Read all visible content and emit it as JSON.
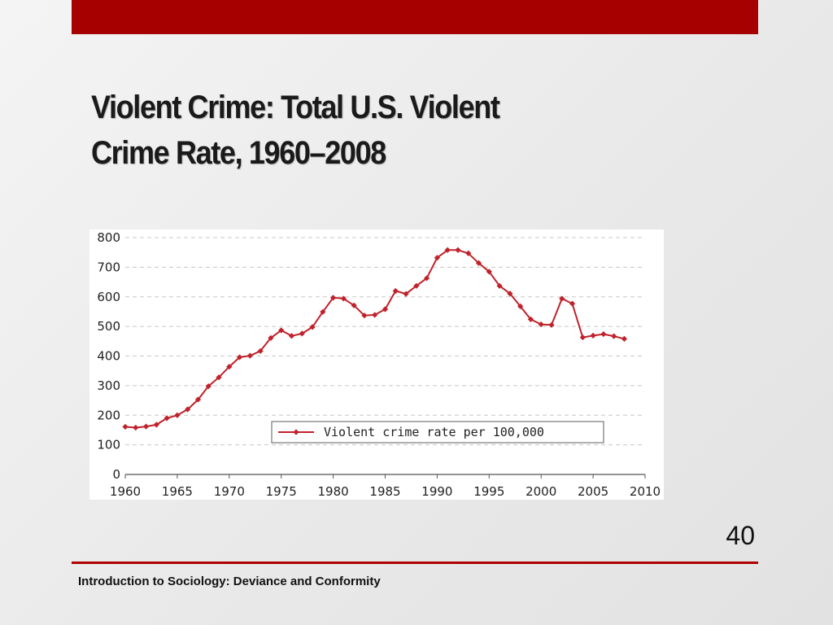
{
  "slide": {
    "title_part1": "Violent Crime: ",
    "title_part2": "Total U.S. Violent",
    "title_part3": "Crime Rate, 1960–2008",
    "page_number": "40",
    "footer": "Introduction to Sociology: Deviance and Conformity"
  },
  "colors": {
    "top_bar": "#a70000",
    "series_line": "#c0222b",
    "rule": "#b00000"
  },
  "chart_data": {
    "type": "line",
    "title": "",
    "xlabel": "",
    "ylabel": "",
    "xlim": [
      1960,
      2010
    ],
    "ylim": [
      0,
      800
    ],
    "x_ticks": [
      1960,
      1965,
      1970,
      1975,
      1980,
      1985,
      1990,
      1995,
      2000,
      2005,
      2010
    ],
    "y_ticks": [
      0,
      100,
      200,
      300,
      400,
      500,
      600,
      700,
      800
    ],
    "grid": "horizontal dashed",
    "legend": "inside bottom-right",
    "series": [
      {
        "name": "Violent crime rate per 100,000",
        "color": "#c0222b",
        "x": [
          1960,
          1961,
          1962,
          1963,
          1964,
          1965,
          1966,
          1967,
          1968,
          1969,
          1970,
          1971,
          1972,
          1973,
          1974,
          1975,
          1976,
          1977,
          1978,
          1979,
          1980,
          1981,
          1982,
          1983,
          1984,
          1985,
          1986,
          1987,
          1988,
          1989,
          1990,
          1991,
          1992,
          1993,
          1994,
          1995,
          1996,
          1997,
          1998,
          1999,
          2000,
          2001,
          2002,
          2003,
          2004,
          2005,
          2006,
          2007,
          2008
        ],
        "values": [
          161,
          158,
          162,
          168,
          190,
          200,
          220,
          253,
          298,
          328,
          364,
          396,
          401,
          417,
          461,
          487,
          468,
          476,
          498,
          549,
          597,
          594,
          571,
          537,
          539,
          558,
          620,
          610,
          637,
          663,
          732,
          758,
          758,
          747,
          714,
          685,
          637,
          611,
          568,
          524,
          507,
          505,
          594,
          577,
          463,
          469,
          474,
          467,
          458
        ]
      }
    ]
  }
}
